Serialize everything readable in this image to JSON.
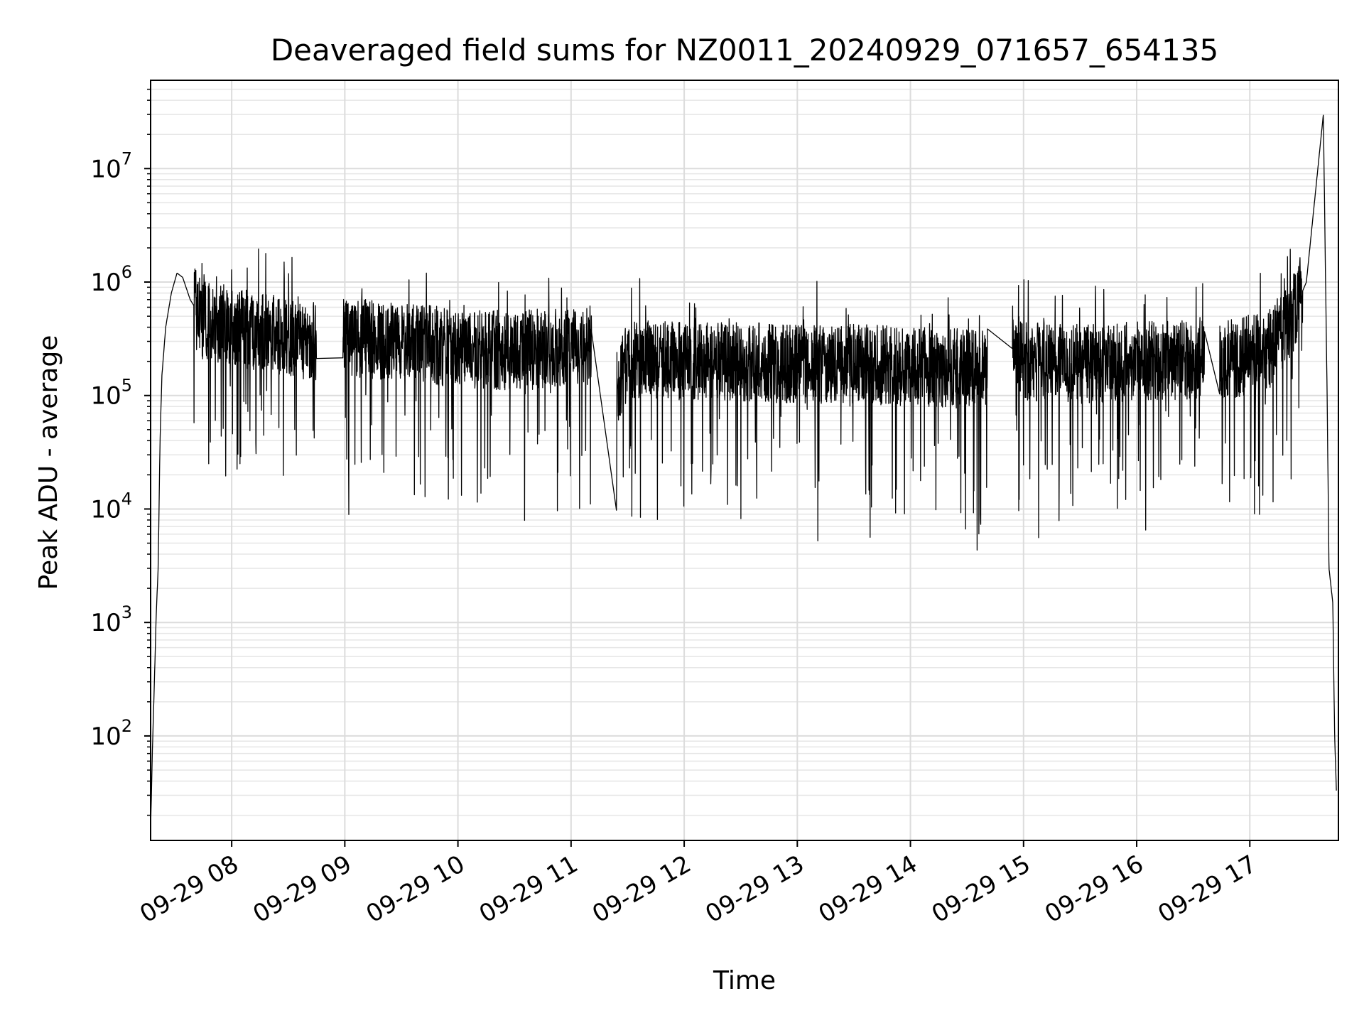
{
  "chart_data": {
    "type": "line",
    "title": "Deaveraged field sums for NZ0011_20240929_071657_654135",
    "xlabel": "Time",
    "ylabel": "Peak ADU - average",
    "yscale": "log",
    "ylim": [
      12,
      60000000
    ],
    "xlim": [
      "2024-09-29 07:17",
      "2024-09-29 17:47"
    ],
    "grid": true,
    "line_color": "#000000",
    "x_ticks": [
      {
        "t": "2024-09-29 08:00",
        "label": "09-29 08"
      },
      {
        "t": "2024-09-29 09:00",
        "label": "09-29 09"
      },
      {
        "t": "2024-09-29 10:00",
        "label": "09-29 10"
      },
      {
        "t": "2024-09-29 11:00",
        "label": "09-29 11"
      },
      {
        "t": "2024-09-29 12:00",
        "label": "09-29 12"
      },
      {
        "t": "2024-09-29 13:00",
        "label": "09-29 13"
      },
      {
        "t": "2024-09-29 14:00",
        "label": "09-29 14"
      },
      {
        "t": "2024-09-29 15:00",
        "label": "09-29 15"
      },
      {
        "t": "2024-09-29 16:00",
        "label": "09-29 16"
      },
      {
        "t": "2024-09-29 17:00",
        "label": "09-29 17"
      }
    ],
    "y_ticks": [
      {
        "value": 100,
        "base": "10",
        "exp": "2"
      },
      {
        "value": 1000,
        "base": "10",
        "exp": "3"
      },
      {
        "value": 10000,
        "base": "10",
        "exp": "4"
      },
      {
        "value": 100000,
        "base": "10",
        "exp": "5"
      },
      {
        "value": 1000000,
        "base": "10",
        "exp": "6"
      },
      {
        "value": 10000000,
        "base": "10",
        "exp": "7"
      }
    ],
    "series": [
      {
        "points": [
          [
            "2024-09-29 07:17",
            15
          ],
          [
            "2024-09-29 07:18",
            80
          ],
          [
            "2024-09-29 07:19",
            300
          ],
          [
            "2024-09-29 07:20",
            1200
          ],
          [
            "2024-09-29 07:21",
            3000
          ],
          [
            "2024-09-29 07:22",
            40000
          ],
          [
            "2024-09-29 07:23",
            150000
          ],
          [
            "2024-09-29 07:25",
            400000
          ],
          [
            "2024-09-29 07:28",
            800000
          ],
          [
            "2024-09-29 07:31",
            1200000
          ],
          [
            "2024-09-29 07:34",
            1100000
          ],
          [
            "2024-09-29 07:38",
            700000
          ],
          [
            "2024-09-29 07:45",
            450000
          ],
          [
            "2024-09-29 08:00",
            400000
          ],
          [
            "2024-09-29 08:20",
            350000
          ],
          [
            "2024-09-29 08:45",
            300000
          ],
          [
            "2024-09-29 09:00",
            330000
          ],
          [
            "2024-09-29 09:30",
            300000
          ],
          [
            "2024-09-29 10:00",
            260000
          ],
          [
            "2024-09-29 10:30",
            250000
          ],
          [
            "2024-09-29 11:10",
            280000
          ],
          [
            "2024-09-29 11:25",
            130000
          ],
          [
            "2024-09-29 11:30",
            210000
          ],
          [
            "2024-09-29 12:00",
            200000
          ],
          [
            "2024-09-29 12:30",
            200000
          ],
          [
            "2024-09-29 13:00",
            190000
          ],
          [
            "2024-09-29 13:30",
            190000
          ],
          [
            "2024-09-29 14:00",
            180000
          ],
          [
            "2024-09-29 14:40",
            170000
          ],
          [
            "2024-09-29 14:55",
            350000
          ],
          [
            "2024-09-29 15:00",
            200000
          ],
          [
            "2024-09-29 15:30",
            190000
          ],
          [
            "2024-09-29 16:00",
            200000
          ],
          [
            "2024-09-29 16:35",
            210000
          ],
          [
            "2024-09-29 16:45",
            200000
          ],
          [
            "2024-09-29 17:00",
            230000
          ],
          [
            "2024-09-29 17:10",
            250000
          ],
          [
            "2024-09-29 17:20",
            400000
          ],
          [
            "2024-09-29 17:30",
            1000000
          ],
          [
            "2024-09-29 17:39",
            30000000
          ],
          [
            "2024-09-29 17:41",
            100000
          ],
          [
            "2024-09-29 17:42",
            3000
          ],
          [
            "2024-09-29 17:44",
            1500
          ],
          [
            "2024-09-29 17:45",
            100
          ],
          [
            "2024-09-29 17:46",
            30
          ]
        ]
      }
    ]
  }
}
